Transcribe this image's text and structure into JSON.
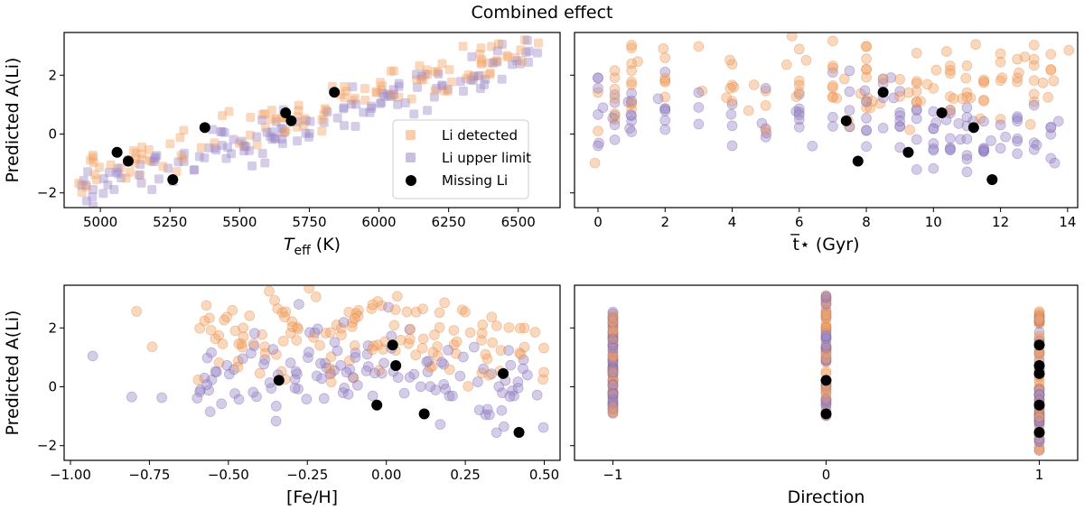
{
  "chart_data": {
    "title": "Combined effect",
    "colors": {
      "detected": "#f4a365",
      "upper": "#9a88c9",
      "missing": "#000000"
    },
    "legend": {
      "placement": "lower-right",
      "panel": 0,
      "entries": [
        "Li detected",
        "Li upper limit",
        "Missing Li"
      ]
    },
    "panels": [
      {
        "type": "scatter",
        "xlabel_main": "T",
        "xlabel_sub": "eff",
        "xlabel_rest": " (K)",
        "ylabel": "Predicted A(Li)",
        "xlim": [
          4870,
          6650
        ],
        "ylim": [
          -2.5,
          3.45
        ],
        "xticks": [
          5000,
          5250,
          5500,
          5750,
          6000,
          6250,
          6500
        ],
        "xtick_labels": [
          "5000",
          "5250",
          "5500",
          "5750",
          "6000",
          "6250",
          "6500"
        ],
        "yticks": [
          -2,
          0,
          2
        ],
        "ytick_labels": [
          "−2",
          "0",
          "2"
        ],
        "missing_li": [
          [
            5060,
            -0.62
          ],
          [
            5100,
            -0.92
          ],
          [
            5260,
            -1.55
          ],
          [
            5375,
            0.22
          ],
          [
            5665,
            0.72
          ],
          [
            5685,
            0.45
          ],
          [
            5840,
            1.42
          ]
        ]
      },
      {
        "type": "scatter",
        "xlabel": "t̅⋆ (Gyr)",
        "ylabel": "",
        "xlim": [
          -0.7,
          14.3
        ],
        "ylim": [
          -2.5,
          3.45
        ],
        "xticks": [
          0,
          2,
          4,
          6,
          8,
          10,
          12,
          14
        ],
        "xtick_labels": [
          "0",
          "2",
          "4",
          "6",
          "8",
          "10",
          "12",
          "14"
        ],
        "yticks": [
          -2,
          0,
          2
        ],
        "ytick_labels": [
          "",
          "",
          ""
        ],
        "missing_li": [
          [
            7.4,
            0.45
          ],
          [
            7.75,
            -0.92
          ],
          [
            8.5,
            1.42
          ],
          [
            9.25,
            -0.62
          ],
          [
            10.25,
            0.72
          ],
          [
            11.2,
            0.22
          ],
          [
            11.75,
            -1.55
          ]
        ]
      },
      {
        "type": "scatter",
        "xlabel": "[Fe/H]",
        "ylabel": "Predicted A(Li)",
        "xlim": [
          -1.02,
          0.55
        ],
        "ylim": [
          -2.5,
          3.45
        ],
        "xticks": [
          -1.0,
          -0.75,
          -0.5,
          -0.25,
          0.0,
          0.25,
          0.5
        ],
        "xtick_labels": [
          "−1.00",
          "−0.75",
          "−0.50",
          "−0.25",
          "0.00",
          "0.25",
          "0.50"
        ],
        "yticks": [
          -2,
          0,
          2
        ],
        "ytick_labels": [
          "−2",
          "0",
          "2"
        ],
        "missing_li": [
          [
            -0.34,
            0.22
          ],
          [
            -0.03,
            -0.62
          ],
          [
            0.02,
            1.42
          ],
          [
            0.03,
            0.72
          ],
          [
            0.12,
            -0.92
          ],
          [
            0.37,
            0.45
          ],
          [
            0.42,
            -1.55
          ]
        ]
      },
      {
        "type": "scatter",
        "xlabel": "Direction",
        "ylabel": "",
        "xlim": [
          -1.18,
          1.18
        ],
        "ylim": [
          -2.5,
          3.45
        ],
        "xticks": [
          -1,
          0,
          1
        ],
        "xtick_labels": [
          "−1",
          "0",
          "1"
        ],
        "yticks": [
          -2,
          0,
          2
        ],
        "ytick_labels": [
          "",
          "",
          ""
        ],
        "missing_li": [
          [
            0,
            0.22
          ],
          [
            0,
            -0.92
          ],
          [
            1,
            1.42
          ],
          [
            1,
            0.72
          ],
          [
            1,
            0.45
          ],
          [
            1,
            -0.62
          ],
          [
            1,
            -1.55
          ]
        ]
      }
    ]
  }
}
